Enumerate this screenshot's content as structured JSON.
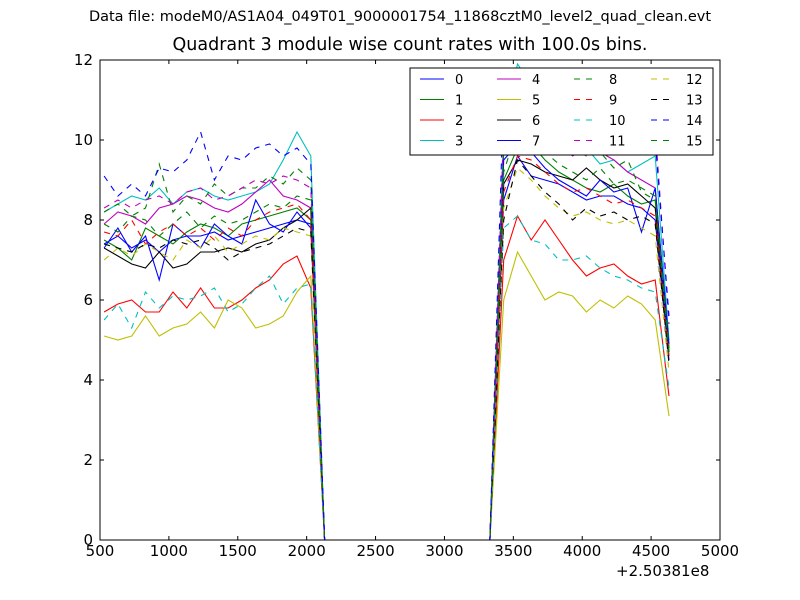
{
  "suptitle": "Data file: modeM0/AS1A04_049T01_9000001754_11868cztM0_level2_quad_clean.evt",
  "chart_data": {
    "type": "line",
    "title": "Quadrant 3 module wise count rates with 100.0s bins.",
    "xlabel": "",
    "ylabel": "",
    "x_offset_label": "+2.50381e8",
    "xlim": [
      500,
      5000
    ],
    "ylim": [
      0,
      12
    ],
    "x_ticks": [
      500,
      1000,
      1500,
      2000,
      2500,
      3000,
      3500,
      4000,
      4500,
      5000
    ],
    "y_ticks": [
      0,
      2,
      4,
      6,
      8,
      10,
      12
    ],
    "legend_position": "top-right",
    "x": [
      530,
      630,
      730,
      830,
      930,
      1030,
      1130,
      1230,
      1330,
      1430,
      1530,
      1630,
      1730,
      1830,
      1930,
      2030,
      2130,
      2230,
      2330,
      2430,
      2530,
      2630,
      2730,
      2830,
      2930,
      3030,
      3130,
      3230,
      3330,
      3430,
      3530,
      3630,
      3730,
      3830,
      3930,
      4030,
      4130,
      4230,
      4330,
      4430,
      4530,
      4630
    ],
    "series": [
      {
        "name": "0",
        "color": "#0000ff",
        "dashed": false,
        "values": [
          7.4,
          7.6,
          7.3,
          7.5,
          7.2,
          7.5,
          7.6,
          7.6,
          7.7,
          7.5,
          7.6,
          7.7,
          7.8,
          7.9,
          8.0,
          7.9,
          0.0,
          0,
          0,
          0,
          0,
          0,
          0,
          0,
          0,
          0,
          0,
          0,
          0.0,
          8.5,
          9.6,
          9.1,
          9.0,
          8.9,
          8.7,
          8.5,
          8.6,
          8.6,
          8.4,
          8.3,
          8.0,
          4.5
        ]
      },
      {
        "name": "1",
        "color": "#008000",
        "dashed": false,
        "values": [
          7.5,
          7.3,
          7.0,
          7.8,
          7.6,
          7.4,
          7.7,
          7.9,
          7.8,
          7.6,
          7.9,
          8.0,
          8.1,
          8.2,
          8.3,
          8.0,
          0.0,
          0,
          0,
          0,
          0,
          0,
          0,
          0,
          0,
          0,
          0,
          0,
          0.0,
          9.0,
          9.8,
          9.9,
          9.5,
          9.2,
          9.0,
          8.8,
          8.7,
          8.9,
          8.6,
          8.4,
          8.5,
          4.6
        ]
      },
      {
        "name": "2",
        "color": "#ff0000",
        "dashed": false,
        "values": [
          5.7,
          5.9,
          6.0,
          5.7,
          5.7,
          6.2,
          5.8,
          6.3,
          5.8,
          5.8,
          6.0,
          6.3,
          6.5,
          6.9,
          7.1,
          6.3,
          0.0,
          0,
          0,
          0,
          0,
          0,
          0,
          0,
          0,
          0,
          0,
          0,
          0.0,
          7.0,
          8.1,
          7.5,
          8.0,
          7.5,
          7.0,
          6.6,
          6.8,
          6.9,
          6.6,
          6.4,
          6.5,
          3.6
        ]
      },
      {
        "name": "3",
        "color": "#00bfbf",
        "dashed": false,
        "values": [
          8.2,
          8.4,
          8.6,
          8.5,
          8.8,
          8.4,
          8.7,
          8.8,
          8.6,
          8.5,
          8.6,
          8.7,
          8.9,
          9.5,
          10.2,
          9.6,
          0.0,
          0,
          0,
          0,
          0,
          0,
          0,
          0,
          0,
          0,
          0,
          0,
          0.0,
          10.2,
          11.9,
          11.4,
          10.5,
          10.0,
          9.7,
          9.8,
          9.4,
          9.5,
          9.2,
          9.4,
          9.6,
          5.0
        ]
      },
      {
        "name": "4",
        "color": "#bf00bf",
        "dashed": false,
        "values": [
          7.9,
          8.2,
          8.1,
          7.9,
          8.3,
          8.4,
          8.6,
          8.5,
          8.3,
          8.2,
          8.4,
          8.7,
          9.0,
          8.6,
          8.5,
          8.3,
          0.0,
          0,
          0,
          0,
          0,
          0,
          0,
          0,
          0,
          0,
          0,
          0,
          0.0,
          9.7,
          10.9,
          10.6,
          10.2,
          9.9,
          9.6,
          9.8,
          9.7,
          9.5,
          9.2,
          9.0,
          8.8,
          4.8
        ]
      },
      {
        "name": "5",
        "color": "#bfbf00",
        "dashed": false,
        "values": [
          5.1,
          5.0,
          5.1,
          5.6,
          5.1,
          5.3,
          5.4,
          5.7,
          5.3,
          6.0,
          5.8,
          5.3,
          5.4,
          5.6,
          6.2,
          6.6,
          0.0,
          0,
          0,
          0,
          0,
          0,
          0,
          0,
          0,
          0,
          0,
          0,
          0.0,
          6.0,
          7.2,
          6.6,
          6.0,
          6.2,
          6.1,
          5.7,
          6.0,
          5.8,
          6.1,
          5.9,
          5.5,
          3.1
        ]
      },
      {
        "name": "6",
        "color": "#000000",
        "dashed": false,
        "values": [
          7.3,
          7.1,
          6.9,
          6.8,
          7.2,
          6.8,
          6.9,
          7.2,
          7.2,
          7.3,
          7.2,
          7.4,
          7.5,
          7.8,
          8.0,
          8.3,
          0.0,
          0,
          0,
          0,
          0,
          0,
          0,
          0,
          0,
          0,
          0,
          0,
          0.0,
          8.9,
          9.5,
          9.4,
          9.2,
          9.1,
          9.0,
          9.3,
          9.0,
          8.8,
          8.9,
          8.6,
          8.3,
          4.7
        ]
      },
      {
        "name": "7",
        "color": "#0000ff",
        "dashed": false,
        "values": [
          7.3,
          7.8,
          7.2,
          7.6,
          6.5,
          7.9,
          7.6,
          7.3,
          7.9,
          7.6,
          7.4,
          8.5,
          7.9,
          7.7,
          8.2,
          7.8,
          0.0,
          0,
          0,
          0,
          0,
          0,
          0,
          0,
          0,
          0,
          0,
          0,
          0.0,
          9.5,
          9.9,
          9.7,
          9.3,
          9.0,
          8.8,
          8.6,
          9.0,
          8.7,
          8.8,
          7.7,
          8.8,
          4.9
        ]
      },
      {
        "name": "8",
        "color": "#008000",
        "dashed": true,
        "values": [
          8.2,
          8.4,
          8.1,
          8.3,
          9.4,
          8.2,
          8.6,
          8.4,
          8.9,
          8.6,
          8.8,
          8.8,
          9.1,
          8.9,
          9.3,
          9.0,
          0.0,
          0,
          0,
          0,
          0,
          0,
          0,
          0,
          0,
          0,
          0,
          0,
          0.0,
          9.9,
          10.8,
          10.5,
          10.2,
          10.0,
          9.8,
          9.6,
          9.7,
          9.3,
          9.5,
          8.7,
          8.5,
          4.8
        ]
      },
      {
        "name": "9",
        "color": "#ff0000",
        "dashed": true,
        "values": [
          7.7,
          7.6,
          8.0,
          7.4,
          7.7,
          7.9,
          7.6,
          7.8,
          7.5,
          7.8,
          7.6,
          8.0,
          8.2,
          8.3,
          8.4,
          8.0,
          0.0,
          0,
          0,
          0,
          0,
          0,
          0,
          0,
          0,
          0,
          0,
          0,
          0.0,
          8.7,
          9.6,
          9.5,
          9.2,
          8.9,
          8.7,
          8.8,
          8.6,
          8.4,
          8.5,
          8.3,
          8.1,
          4.6
        ]
      },
      {
        "name": "10",
        "color": "#00bfbf",
        "dashed": true,
        "values": [
          5.5,
          5.9,
          5.3,
          6.2,
          5.8,
          6.1,
          6.0,
          6.1,
          6.3,
          5.7,
          5.9,
          6.3,
          6.6,
          5.9,
          6.3,
          6.4,
          0.0,
          0,
          0,
          0,
          0,
          0,
          0,
          0,
          0,
          0,
          0,
          0,
          0.0,
          7.8,
          8.1,
          7.5,
          7.4,
          7.0,
          7.0,
          7.1,
          6.8,
          6.6,
          6.5,
          6.3,
          6.2,
          3.8
        ]
      },
      {
        "name": "11",
        "color": "#bf00bf",
        "dashed": true,
        "values": [
          8.3,
          8.5,
          8.3,
          8.5,
          8.6,
          8.4,
          8.7,
          8.8,
          8.5,
          8.6,
          8.8,
          9.0,
          8.9,
          9.1,
          9.0,
          8.8,
          0.0,
          0,
          0,
          0,
          0,
          0,
          0,
          0,
          0,
          0,
          0,
          0,
          0.0,
          10.4,
          11.5,
          11.2,
          10.9,
          10.6,
          10.8,
          10.3,
          10.5,
          10.9,
          10.6,
          10.7,
          10.3,
          5.4
        ]
      },
      {
        "name": "12",
        "color": "#bfbf00",
        "dashed": true,
        "values": [
          7.0,
          7.3,
          7.1,
          7.4,
          7.2,
          7.0,
          7.5,
          7.3,
          7.6,
          7.2,
          7.4,
          7.6,
          7.5,
          7.8,
          7.7,
          7.6,
          0.0,
          0,
          0,
          0,
          0,
          0,
          0,
          0,
          0,
          0,
          0,
          0,
          0.0,
          8.3,
          9.3,
          9.0,
          8.6,
          8.3,
          8.1,
          8.2,
          8.0,
          7.9,
          8.0,
          7.8,
          7.6,
          4.2
        ]
      },
      {
        "name": "13",
        "color": "#000000",
        "dashed": true,
        "values": [
          7.4,
          7.3,
          7.2,
          7.4,
          7.3,
          7.5,
          7.4,
          7.5,
          7.3,
          7.0,
          7.2,
          7.3,
          7.4,
          7.6,
          7.8,
          7.7,
          0.0,
          0,
          0,
          0,
          0,
          0,
          0,
          0,
          0,
          0,
          0,
          0,
          0.0,
          8.0,
          9.5,
          9.1,
          8.7,
          8.4,
          8.0,
          8.3,
          8.1,
          8.2,
          8.0,
          8.1,
          7.9,
          4.4
        ]
      },
      {
        "name": "14",
        "color": "#0000ff",
        "dashed": true,
        "values": [
          9.1,
          8.6,
          8.9,
          8.6,
          9.3,
          9.2,
          9.5,
          10.2,
          9.0,
          9.6,
          9.5,
          9.8,
          9.9,
          9.6,
          9.8,
          9.4,
          0.0,
          0,
          0,
          0,
          0,
          0,
          0,
          0,
          0,
          0,
          0,
          0,
          0.0,
          11.3,
          11.6,
          11.0,
          11.2,
          10.8,
          10.5,
          10.9,
          10.6,
          10.4,
          10.7,
          10.2,
          10.0,
          5.6
        ]
      },
      {
        "name": "15",
        "color": "#008000",
        "dashed": true,
        "values": [
          7.9,
          7.7,
          8.1,
          8.0,
          7.6,
          7.9,
          8.2,
          7.8,
          8.1,
          7.9,
          8.0,
          8.2,
          8.4,
          8.3,
          8.6,
          8.5,
          0.0,
          0,
          0,
          0,
          0,
          0,
          0,
          0,
          0,
          0,
          0,
          0,
          0.0,
          9.2,
          10.3,
          10.0,
          9.7,
          9.4,
          9.2,
          9.0,
          9.3,
          8.9,
          9.0,
          8.8,
          8.6,
          4.7
        ]
      }
    ]
  }
}
